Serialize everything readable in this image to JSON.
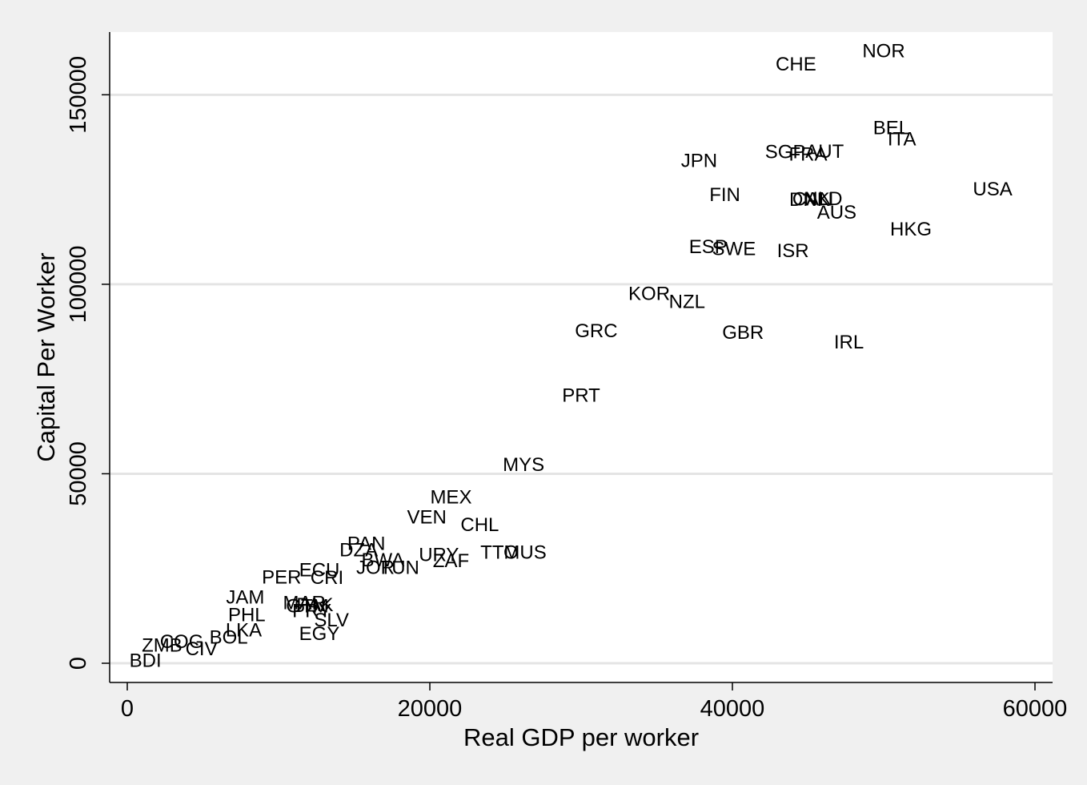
{
  "chart_data": {
    "type": "scatter",
    "title": "",
    "xlabel": "Real GDP per worker",
    "ylabel": "Capital Per Worker",
    "xlim": [
      0,
      60000
    ],
    "ylim": [
      0,
      160000
    ],
    "xticks": [
      0,
      20000,
      40000,
      60000
    ],
    "yticks": [
      0,
      50000,
      100000,
      150000
    ],
    "grid": true,
    "legend": "none",
    "colors": {
      "background": "#f0f0f0",
      "plot_area": "#ffffff",
      "gridline": "#e4e4e4",
      "text": "#000000"
    },
    "points": [
      {
        "label": "NOR",
        "x": 50000,
        "y": 161500
      },
      {
        "label": "CHE",
        "x": 44200,
        "y": 158000
      },
      {
        "label": "BEL",
        "x": 50500,
        "y": 141200
      },
      {
        "label": "ITA",
        "x": 51200,
        "y": 138200
      },
      {
        "label": "AUT",
        "x": 46100,
        "y": 135000
      },
      {
        "label": "SGP",
        "x": 43500,
        "y": 134800
      },
      {
        "label": "FRA",
        "x": 45000,
        "y": 134200
      },
      {
        "label": "JPN",
        "x": 37800,
        "y": 132500
      },
      {
        "label": "USA",
        "x": 57200,
        "y": 125000
      },
      {
        "label": "FIN",
        "x": 39500,
        "y": 123500
      },
      {
        "label": "DNK",
        "x": 45100,
        "y": 122300
      },
      {
        "label": "CAN",
        "x": 45300,
        "y": 122400
      },
      {
        "label": "NLD",
        "x": 46000,
        "y": 122500
      },
      {
        "label": "AUS",
        "x": 46900,
        "y": 118900
      },
      {
        "label": "HKG",
        "x": 51800,
        "y": 114400
      },
      {
        "label": "ESP",
        "x": 38400,
        "y": 109800
      },
      {
        "label": "SWE",
        "x": 40100,
        "y": 109300
      },
      {
        "label": "ISR",
        "x": 44000,
        "y": 108700
      },
      {
        "label": "KOR",
        "x": 34500,
        "y": 97400
      },
      {
        "label": "NZL",
        "x": 37000,
        "y": 95300
      },
      {
        "label": "GRC",
        "x": 31000,
        "y": 87600
      },
      {
        "label": "GBR",
        "x": 40700,
        "y": 87200
      },
      {
        "label": "IRL",
        "x": 47700,
        "y": 84700
      },
      {
        "label": "PRT",
        "x": 30000,
        "y": 70600
      },
      {
        "label": "MYS",
        "x": 26200,
        "y": 52300
      },
      {
        "label": "MEX",
        "x": 21400,
        "y": 43700
      },
      {
        "label": "VEN",
        "x": 19800,
        "y": 38500
      },
      {
        "label": "CHL",
        "x": 23300,
        "y": 36500
      },
      {
        "label": "PAN",
        "x": 15800,
        "y": 31500
      },
      {
        "label": "DZA",
        "x": 15300,
        "y": 29800
      },
      {
        "label": "MUS",
        "x": 26300,
        "y": 29200
      },
      {
        "label": "TTO",
        "x": 24600,
        "y": 29200
      },
      {
        "label": "URY",
        "x": 20600,
        "y": 28500
      },
      {
        "label": "BWA",
        "x": 16900,
        "y": 27200
      },
      {
        "label": "ZAF",
        "x": 21400,
        "y": 27000
      },
      {
        "label": "JOR",
        "x": 16400,
        "y": 25200
      },
      {
        "label": "TUN",
        "x": 18000,
        "y": 25100
      },
      {
        "label": "ECU",
        "x": 12700,
        "y": 24500
      },
      {
        "label": "CRI",
        "x": 13200,
        "y": 22500
      },
      {
        "label": "PER",
        "x": 10200,
        "y": 22600
      },
      {
        "label": "JAM",
        "x": 7800,
        "y": 17300
      },
      {
        "label": "MAR",
        "x": 11700,
        "y": 15900
      },
      {
        "label": "GTM",
        "x": 11900,
        "y": 15000
      },
      {
        "label": "PAK",
        "x": 12400,
        "y": 15300
      },
      {
        "label": "PRY",
        "x": 12200,
        "y": 13700
      },
      {
        "label": "PHL",
        "x": 7900,
        "y": 12700
      },
      {
        "label": "SLV",
        "x": 13500,
        "y": 11300
      },
      {
        "label": "LKA",
        "x": 7700,
        "y": 8700
      },
      {
        "label": "BOL",
        "x": 6700,
        "y": 6800
      },
      {
        "label": "EGY",
        "x": 12700,
        "y": 7700
      },
      {
        "label": "COG",
        "x": 3600,
        "y": 5600
      },
      {
        "label": "ZMB",
        "x": 2300,
        "y": 4600
      },
      {
        "label": "CIV",
        "x": 4900,
        "y": 3700
      },
      {
        "label": "BDI",
        "x": 1200,
        "y": 600
      }
    ]
  }
}
